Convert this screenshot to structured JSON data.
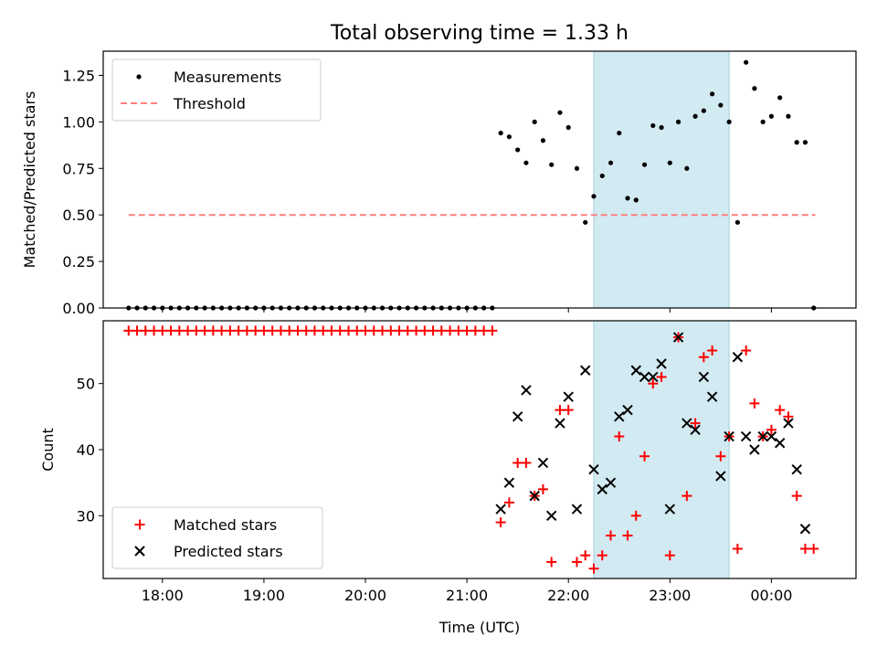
{
  "title": "Total observing time = 1.33 h",
  "xlabel": "Time (UTC)",
  "colors": {
    "matched": "#ff0000",
    "predicted": "#000000",
    "measurements": "#000000",
    "threshold": "#ff7f7f",
    "span": "#add8e6"
  },
  "chart_data": [
    {
      "type": "scatter",
      "ylabel": "Matched/Predicted stars",
      "xlim": [
        "17:25",
        "00:50"
      ],
      "ylim": [
        0,
        1.38
      ],
      "yticks": [
        "0.00",
        "0.25",
        "0.50",
        "0.75",
        "1.00",
        "1.25"
      ],
      "xticks": [
        "18:00",
        "19:00",
        "20:00",
        "21:00",
        "22:00",
        "23:00",
        "00:00"
      ],
      "show_xtick_labels": false,
      "grid": false,
      "legend": {
        "placement": "top-left",
        "entries": [
          {
            "label": "Measurements",
            "marker": "dot"
          },
          {
            "label": "Threshold",
            "marker": "dashed-line"
          }
        ]
      },
      "shaded_span": {
        "start": "22:15",
        "end": "23:35"
      },
      "threshold": {
        "y": 0.5,
        "x_start": "17:40",
        "x_end": "00:26"
      },
      "series": [
        {
          "name": "Measurements",
          "points": [
            [
              "17:40",
              0
            ],
            [
              "17:45",
              0
            ],
            [
              "17:50",
              0
            ],
            [
              "17:55",
              0
            ],
            [
              "18:00",
              0
            ],
            [
              "18:05",
              0
            ],
            [
              "18:10",
              0
            ],
            [
              "18:15",
              0
            ],
            [
              "18:20",
              0
            ],
            [
              "18:25",
              0
            ],
            [
              "18:30",
              0
            ],
            [
              "18:35",
              0
            ],
            [
              "18:40",
              0
            ],
            [
              "18:45",
              0
            ],
            [
              "18:50",
              0
            ],
            [
              "18:55",
              0
            ],
            [
              "19:00",
              0
            ],
            [
              "19:05",
              0
            ],
            [
              "19:10",
              0
            ],
            [
              "19:15",
              0
            ],
            [
              "19:20",
              0
            ],
            [
              "19:25",
              0
            ],
            [
              "19:30",
              0
            ],
            [
              "19:35",
              0
            ],
            [
              "19:40",
              0
            ],
            [
              "19:45",
              0
            ],
            [
              "19:50",
              0
            ],
            [
              "19:55",
              0
            ],
            [
              "20:00",
              0
            ],
            [
              "20:05",
              0
            ],
            [
              "20:10",
              0
            ],
            [
              "20:15",
              0
            ],
            [
              "20:20",
              0
            ],
            [
              "20:25",
              0
            ],
            [
              "20:30",
              0
            ],
            [
              "20:35",
              0
            ],
            [
              "20:40",
              0
            ],
            [
              "20:45",
              0
            ],
            [
              "20:50",
              0
            ],
            [
              "20:55",
              0
            ],
            [
              "21:00",
              0
            ],
            [
              "21:05",
              0
            ],
            [
              "21:10",
              0
            ],
            [
              "21:15",
              0
            ],
            [
              "21:20",
              0.94
            ],
            [
              "21:25",
              0.92
            ],
            [
              "21:30",
              0.85
            ],
            [
              "21:35",
              0.78
            ],
            [
              "21:40",
              1.0
            ],
            [
              "21:45",
              0.9
            ],
            [
              "21:50",
              0.77
            ],
            [
              "21:55",
              1.05
            ],
            [
              "22:00",
              0.97
            ],
            [
              "22:05",
              0.75
            ],
            [
              "22:10",
              0.46
            ],
            [
              "22:15",
              0.6
            ],
            [
              "22:20",
              0.71
            ],
            [
              "22:25",
              0.78
            ],
            [
              "22:30",
              0.94
            ],
            [
              "22:35",
              0.59
            ],
            [
              "22:40",
              0.58
            ],
            [
              "22:45",
              0.77
            ],
            [
              "22:50",
              0.98
            ],
            [
              "22:55",
              0.97
            ],
            [
              "23:00",
              0.78
            ],
            [
              "23:05",
              1.0
            ],
            [
              "23:10",
              0.75
            ],
            [
              "23:15",
              1.03
            ],
            [
              "23:20",
              1.06
            ],
            [
              "23:25",
              1.15
            ],
            [
              "23:30",
              1.09
            ],
            [
              "23:35",
              1.0
            ],
            [
              "23:40",
              0.46
            ],
            [
              "23:45",
              1.32
            ],
            [
              "23:50",
              1.18
            ],
            [
              "23:55",
              1.0
            ],
            [
              "00:00",
              1.03
            ],
            [
              "00:05",
              1.13
            ],
            [
              "00:10",
              1.03
            ],
            [
              "00:15",
              0.89
            ],
            [
              "00:20",
              0.89
            ],
            [
              "00:25",
              0
            ]
          ]
        }
      ]
    },
    {
      "type": "scatter",
      "ylabel": "Count",
      "xlim": [
        "17:25",
        "00:50"
      ],
      "ylim": [
        20.5,
        59.5
      ],
      "yticks": [
        "30",
        "40",
        "50"
      ],
      "xticks": [
        "18:00",
        "19:00",
        "20:00",
        "21:00",
        "22:00",
        "23:00",
        "00:00"
      ],
      "show_xtick_labels": true,
      "grid": false,
      "legend": {
        "placement": "bottom-left",
        "entries": [
          {
            "label": "Matched stars",
            "marker": "plus"
          },
          {
            "label": "Predicted stars",
            "marker": "x"
          }
        ]
      },
      "shaded_span": {
        "start": "22:15",
        "end": "23:35"
      },
      "series": [
        {
          "name": "Matched stars",
          "points": [
            [
              "17:40",
              58
            ],
            [
              "17:45",
              58
            ],
            [
              "17:50",
              58
            ],
            [
              "17:55",
              58
            ],
            [
              "18:00",
              58
            ],
            [
              "18:05",
              58
            ],
            [
              "18:10",
              58
            ],
            [
              "18:15",
              58
            ],
            [
              "18:20",
              58
            ],
            [
              "18:25",
              58
            ],
            [
              "18:30",
              58
            ],
            [
              "18:35",
              58
            ],
            [
              "18:40",
              58
            ],
            [
              "18:45",
              58
            ],
            [
              "18:50",
              58
            ],
            [
              "18:55",
              58
            ],
            [
              "19:00",
              58
            ],
            [
              "19:05",
              58
            ],
            [
              "19:10",
              58
            ],
            [
              "19:15",
              58
            ],
            [
              "19:20",
              58
            ],
            [
              "19:25",
              58
            ],
            [
              "19:30",
              58
            ],
            [
              "19:35",
              58
            ],
            [
              "19:40",
              58
            ],
            [
              "19:45",
              58
            ],
            [
              "19:50",
              58
            ],
            [
              "19:55",
              58
            ],
            [
              "20:00",
              58
            ],
            [
              "20:05",
              58
            ],
            [
              "20:10",
              58
            ],
            [
              "20:15",
              58
            ],
            [
              "20:20",
              58
            ],
            [
              "20:25",
              58
            ],
            [
              "20:30",
              58
            ],
            [
              "20:35",
              58
            ],
            [
              "20:40",
              58
            ],
            [
              "20:45",
              58
            ],
            [
              "20:50",
              58
            ],
            [
              "20:55",
              58
            ],
            [
              "21:00",
              58
            ],
            [
              "21:05",
              58
            ],
            [
              "21:10",
              58
            ],
            [
              "21:15",
              58
            ],
            [
              "21:20",
              29
            ],
            [
              "21:25",
              32
            ],
            [
              "21:30",
              38
            ],
            [
              "21:35",
              38
            ],
            [
              "21:40",
              33
            ],
            [
              "21:45",
              34
            ],
            [
              "21:50",
              23
            ],
            [
              "21:55",
              46
            ],
            [
              "22:00",
              46
            ],
            [
              "22:05",
              23
            ],
            [
              "22:10",
              24
            ],
            [
              "22:15",
              22
            ],
            [
              "22:20",
              24
            ],
            [
              "22:25",
              27
            ],
            [
              "22:30",
              42
            ],
            [
              "22:35",
              27
            ],
            [
              "22:40",
              30
            ],
            [
              "22:45",
              39
            ],
            [
              "22:50",
              50
            ],
            [
              "22:55",
              51
            ],
            [
              "23:00",
              24
            ],
            [
              "23:05",
              57
            ],
            [
              "23:10",
              33
            ],
            [
              "23:15",
              44
            ],
            [
              "23:20",
              54
            ],
            [
              "23:25",
              55
            ],
            [
              "23:30",
              39
            ],
            [
              "23:35",
              42
            ],
            [
              "23:40",
              25
            ],
            [
              "23:45",
              55
            ],
            [
              "23:50",
              47
            ],
            [
              "23:55",
              42
            ],
            [
              "00:00",
              43
            ],
            [
              "00:05",
              46
            ],
            [
              "00:10",
              45
            ],
            [
              "00:15",
              33
            ],
            [
              "00:20",
              25
            ],
            [
              "00:25",
              25
            ]
          ]
        },
        {
          "name": "Predicted stars",
          "points": [
            [
              "21:20",
              31
            ],
            [
              "21:25",
              35
            ],
            [
              "21:30",
              45
            ],
            [
              "21:35",
              49
            ],
            [
              "21:40",
              33
            ],
            [
              "21:45",
              38
            ],
            [
              "21:50",
              30
            ],
            [
              "21:55",
              44
            ],
            [
              "22:00",
              48
            ],
            [
              "22:05",
              31
            ],
            [
              "22:10",
              52
            ],
            [
              "22:15",
              37
            ],
            [
              "22:20",
              34
            ],
            [
              "22:25",
              35
            ],
            [
              "22:30",
              45
            ],
            [
              "22:35",
              46
            ],
            [
              "22:40",
              52
            ],
            [
              "22:45",
              51
            ],
            [
              "22:50",
              51
            ],
            [
              "22:55",
              53
            ],
            [
              "23:00",
              31
            ],
            [
              "23:05",
              57
            ],
            [
              "23:10",
              44
            ],
            [
              "23:15",
              43
            ],
            [
              "23:20",
              51
            ],
            [
              "23:25",
              48
            ],
            [
              "23:30",
              36
            ],
            [
              "23:35",
              42
            ],
            [
              "23:40",
              54
            ],
            [
              "23:45",
              42
            ],
            [
              "23:50",
              40
            ],
            [
              "23:55",
              42
            ],
            [
              "00:00",
              42
            ],
            [
              "00:05",
              41
            ],
            [
              "00:10",
              44
            ],
            [
              "00:15",
              37
            ],
            [
              "00:20",
              28
            ]
          ]
        }
      ]
    }
  ]
}
